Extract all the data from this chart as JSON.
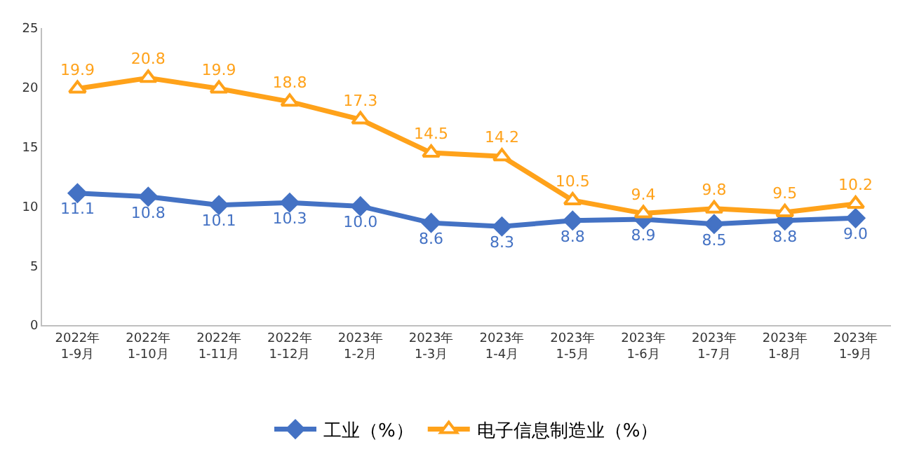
{
  "chart_data": {
    "type": "line",
    "categories": [
      "2022年\n1-9月",
      "2022年\n1-10月",
      "2022年\n1-11月",
      "2022年\n1-12月",
      "2023年\n1-2月",
      "2023年\n1-3月",
      "2023年\n1-4月",
      "2023年\n1-5月",
      "2023年\n1-6月",
      "2023年\n1-7月",
      "2023年\n1-8月",
      "2023年\n1-9月"
    ],
    "series": [
      {
        "name": "工业（%）",
        "color": "#4472c4",
        "marker": "diamond",
        "values": [
          11.1,
          10.8,
          10.1,
          10.3,
          10.0,
          8.6,
          8.3,
          8.8,
          8.9,
          8.5,
          8.8,
          9.0
        ],
        "value_labels": [
          "11.1",
          "10.8",
          "10.1",
          "10.3",
          "10.0",
          "8.6",
          "8.3",
          "8.8",
          "8.9",
          "8.5",
          "8.8",
          "9.0"
        ]
      },
      {
        "name": "电子信息制造业（%）",
        "color": "#ffa21a",
        "marker": "triangle",
        "values": [
          19.9,
          20.8,
          19.9,
          18.8,
          17.3,
          14.5,
          14.2,
          10.5,
          9.4,
          9.8,
          9.5,
          10.2
        ],
        "value_labels": [
          "19.9",
          "20.8",
          "19.9",
          "18.8",
          "17.3",
          "14.5",
          "14.2",
          "10.5",
          "9.4",
          "9.8",
          "9.5",
          "10.2"
        ]
      }
    ],
    "ylim": [
      0,
      25
    ],
    "yticks": [
      0,
      5,
      10,
      15,
      20,
      25
    ],
    "grid": false,
    "legend": "bottom",
    "line_style": "solid"
  }
}
